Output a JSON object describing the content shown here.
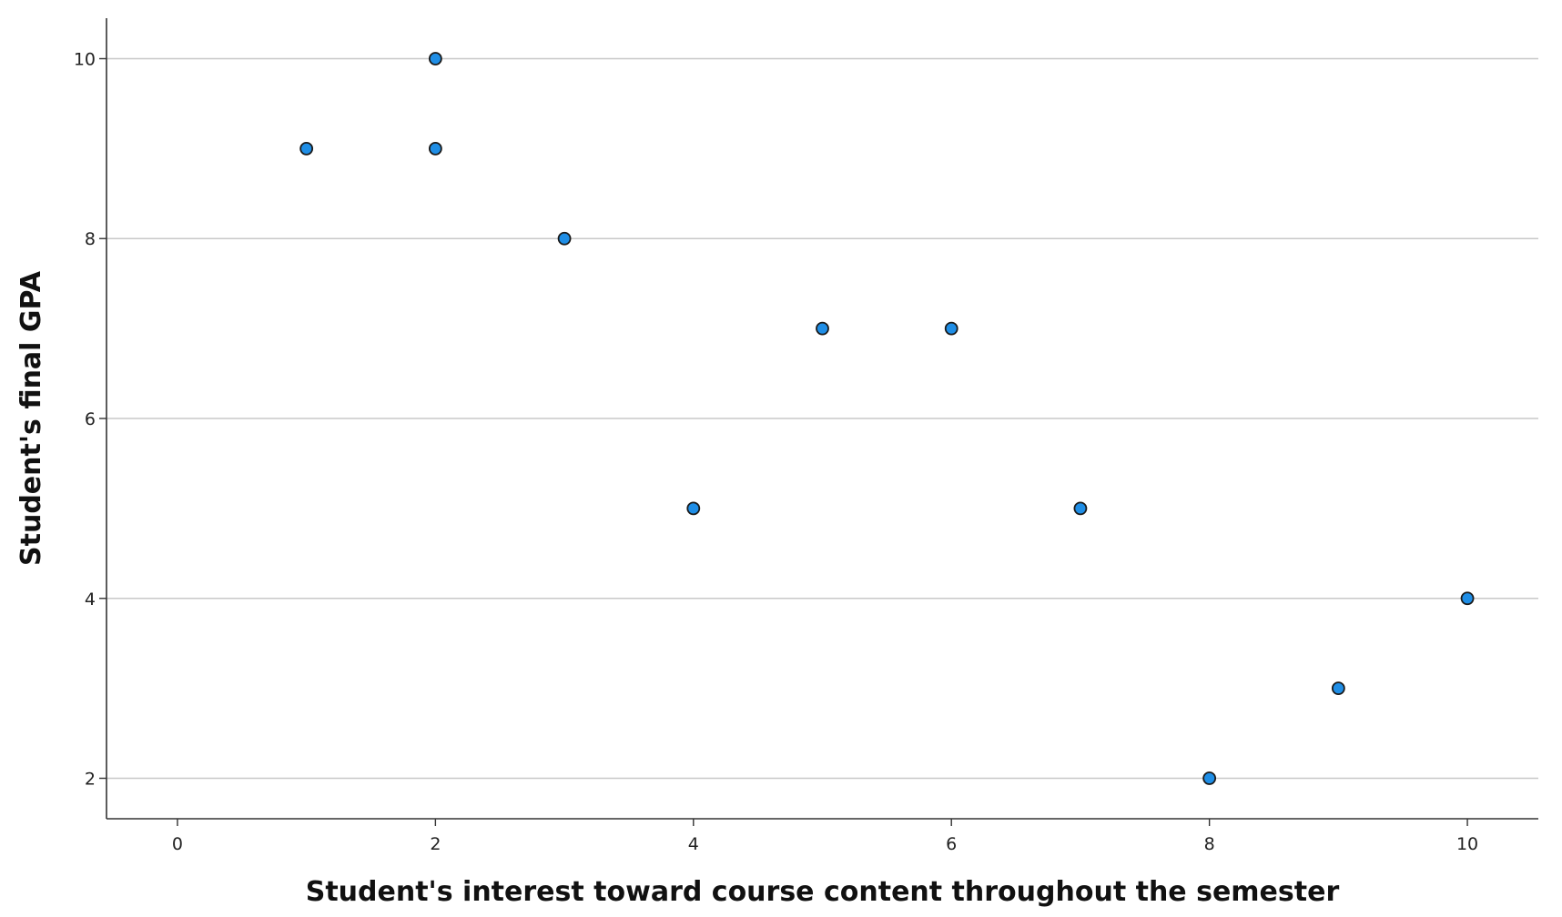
{
  "chart_data": {
    "type": "scatter",
    "xlabel": "Student's interest toward course content throughout the semester",
    "ylabel": "Student's final GPA",
    "xlim": [
      -0.55,
      10.55
    ],
    "ylim": [
      1.55,
      10.45
    ],
    "x_ticks": [
      "0",
      "2",
      "4",
      "6",
      "8",
      "10"
    ],
    "y_ticks": [
      "2",
      "4",
      "6",
      "8",
      "10"
    ],
    "grid": "horizontal",
    "marker_color": "#1f8ee6",
    "marker_edge_color": "#1a1a1a",
    "points": [
      {
        "x": 1,
        "y": 9
      },
      {
        "x": 2,
        "y": 10
      },
      {
        "x": 2,
        "y": 9
      },
      {
        "x": 3,
        "y": 8
      },
      {
        "x": 4,
        "y": 5
      },
      {
        "x": 5,
        "y": 7
      },
      {
        "x": 6,
        "y": 7
      },
      {
        "x": 7,
        "y": 5
      },
      {
        "x": 8,
        "y": 2
      },
      {
        "x": 9,
        "y": 3
      },
      {
        "x": 10,
        "y": 4
      }
    ]
  }
}
